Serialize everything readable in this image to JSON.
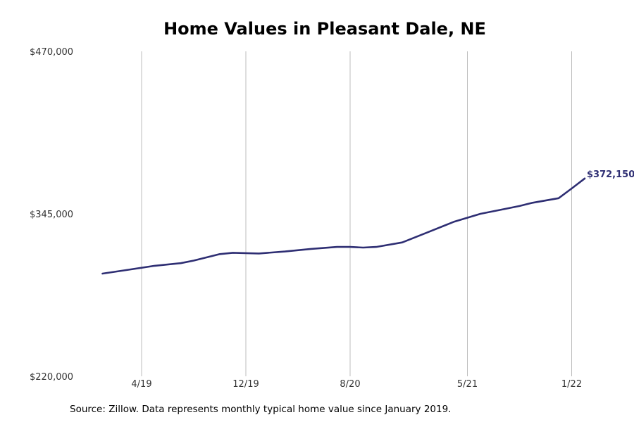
{
  "chart_data": {
    "type": "line",
    "title": "Home Values in Pleasant Dale, NE",
    "xlabel": "",
    "ylabel": "",
    "ylim": [
      220000,
      470000
    ],
    "y_ticks": [
      "$470,000",
      "$345,000",
      "$220,000"
    ],
    "y_tick_values": [
      470000,
      345000,
      220000
    ],
    "x_ticks": [
      "4/19",
      "12/19",
      "8/20",
      "5/21",
      "1/22"
    ],
    "x_tick_values": [
      "2019-04",
      "2019-12",
      "2020-08",
      "2021-05",
      "2022-01"
    ],
    "grid": "vertical at x ticks",
    "series": [
      {
        "color": "#2e2e73",
        "points": [
          {
            "x": "2019-01",
            "y": 299000
          },
          {
            "x": "2019-03",
            "y": 302000
          },
          {
            "x": "2019-05",
            "y": 305000
          },
          {
            "x": "2019-07",
            "y": 307000
          },
          {
            "x": "2019-08",
            "y": 309000
          },
          {
            "x": "2019-10",
            "y": 314000
          },
          {
            "x": "2019-11",
            "y": 315000
          },
          {
            "x": "2020-01",
            "y": 314500
          },
          {
            "x": "2020-03",
            "y": 316000
          },
          {
            "x": "2020-05",
            "y": 318000
          },
          {
            "x": "2020-07",
            "y": 319500
          },
          {
            "x": "2020-08",
            "y": 319500
          },
          {
            "x": "2020-09",
            "y": 319000
          },
          {
            "x": "2020-10",
            "y": 319500
          },
          {
            "x": "2020-12",
            "y": 323000
          },
          {
            "x": "2021-02",
            "y": 331000
          },
          {
            "x": "2021-04",
            "y": 339000
          },
          {
            "x": "2021-06",
            "y": 345000
          },
          {
            "x": "2021-08",
            "y": 349000
          },
          {
            "x": "2021-09",
            "y": 351000
          },
          {
            "x": "2021-10",
            "y": 353500
          },
          {
            "x": "2021-12",
            "y": 357000
          },
          {
            "x": "2022-01",
            "y": 364500
          },
          {
            "x": "2022-02",
            "y": 372150
          }
        ]
      }
    ],
    "end_label": "$372,150"
  },
  "source_note": "Source: Zillow. Data represents monthly typical home value since January 2019."
}
